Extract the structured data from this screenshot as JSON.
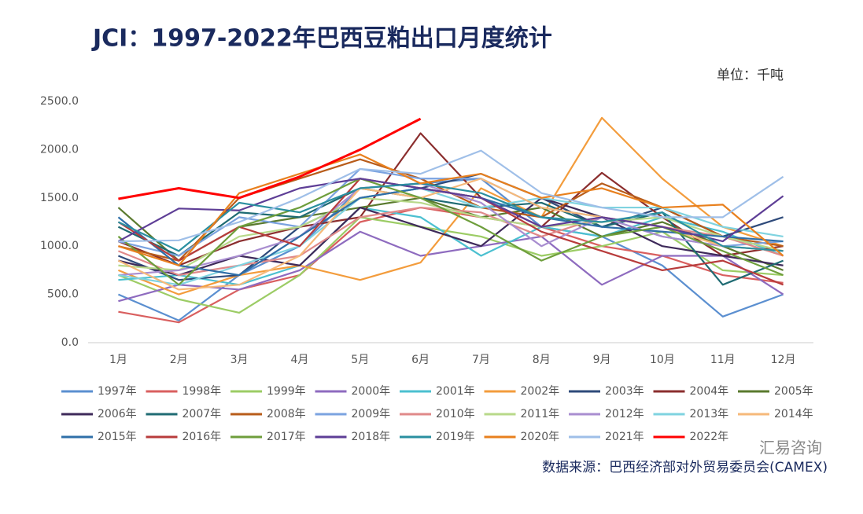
{
  "chart_data": {
    "type": "line",
    "title": "JCI：1997-2022年巴西豆粕出口月度统计",
    "unit": "单位：千吨",
    "source": "数据来源：巴西经济部对外贸易委员会(CAMEX)",
    "watermark": "汇易咨询",
    "categories": [
      "1月",
      "2月",
      "3月",
      "4月",
      "5月",
      "6月",
      "7月",
      "8月",
      "9月",
      "10月",
      "11月",
      "12月"
    ],
    "ylim": [
      0,
      2500
    ],
    "yticks": [
      {
        "value": 0,
        "label": "0.0"
      },
      {
        "value": 500,
        "label": "500.0"
      },
      {
        "value": 1000,
        "label": "1000.0"
      },
      {
        "value": 1500,
        "label": "1500.0"
      },
      {
        "value": 2000,
        "label": "2000.0"
      },
      {
        "value": 2500,
        "label": "2500.0"
      }
    ],
    "grid": false,
    "legend": "bottom",
    "series": [
      {
        "name": "1997年",
        "color": "#5b8fd0",
        "values": [
          500,
          230,
          700,
          1000,
          1600,
          1650,
          1700,
          1200,
          1100,
          800,
          270,
          500
        ]
      },
      {
        "name": "1998年",
        "color": "#d95f5f",
        "values": [
          320,
          210,
          550,
          700,
          1250,
          1400,
          1300,
          1200,
          1000,
          900,
          700,
          620
        ]
      },
      {
        "name": "1999年",
        "color": "#9ccc65",
        "values": [
          700,
          450,
          310,
          700,
          1300,
          1200,
          1100,
          900,
          1000,
          1150,
          750,
          700
        ]
      },
      {
        "name": "2000年",
        "color": "#8e6bbf",
        "values": [
          430,
          600,
          550,
          750,
          1150,
          900,
          1000,
          1100,
          600,
          900,
          900,
          500
        ]
      },
      {
        "name": "2001年",
        "color": "#4bc0d0",
        "values": [
          650,
          700,
          600,
          800,
          1400,
          1300,
          900,
          1200,
          1100,
          1300,
          1150,
          900
        ]
      },
      {
        "name": "2002年",
        "color": "#f39c3c",
        "values": [
          750,
          500,
          700,
          800,
          650,
          830,
          1600,
          1300,
          2330,
          1700,
          1200,
          1000
        ]
      },
      {
        "name": "2003年",
        "color": "#2e4a7a",
        "values": [
          900,
          650,
          700,
          1200,
          1500,
          1600,
          1750,
          1500,
          1200,
          1400,
          1100,
          1300
        ]
      },
      {
        "name": "2004年",
        "color": "#8b2e2e",
        "values": [
          1050,
          800,
          1050,
          1200,
          1300,
          2170,
          1500,
          1200,
          1760,
          1300,
          900,
          1000
        ]
      },
      {
        "name": "2005年",
        "color": "#5a7a2e",
        "values": [
          1400,
          850,
          1200,
          1300,
          1400,
          1500,
          1300,
          1400,
          1100,
          1250,
          1000,
          750
        ]
      },
      {
        "name": "2006年",
        "color": "#3e2a5a",
        "values": [
          850,
          700,
          900,
          800,
          1400,
          1200,
          1000,
          1500,
          1300,
          1000,
          900,
          800
        ]
      },
      {
        "name": "2007年",
        "color": "#1f6b73",
        "values": [
          1200,
          900,
          1350,
          1300,
          1600,
          1500,
          1400,
          1450,
          1200,
          1350,
          600,
          850
        ]
      },
      {
        "name": "2008年",
        "color": "#b85c1a",
        "values": [
          1000,
          850,
          1500,
          1700,
          1900,
          1700,
          1400,
          1300,
          1650,
          1400,
          1100,
          1000
        ]
      },
      {
        "name": "2009年",
        "color": "#7ba3e0",
        "values": [
          1050,
          900,
          1300,
          1200,
          1800,
          1700,
          1700,
          1400,
          1300,
          1100,
          1000,
          1050
        ]
      },
      {
        "name": "2010年",
        "color": "#e08a8a",
        "values": [
          950,
          700,
          800,
          900,
          1300,
          1400,
          1350,
          1100,
          1300,
          1200,
          1100,
          900
        ]
      },
      {
        "name": "2011年",
        "color": "#b8d98a",
        "values": [
          800,
          750,
          1100,
          1200,
          1500,
          1450,
          1300,
          1200,
          1250,
          1300,
          1100,
          950
        ]
      },
      {
        "name": "2012年",
        "color": "#a98ed0",
        "values": [
          700,
          750,
          900,
          1100,
          1600,
          1650,
          1450,
          1000,
          1300,
          1100,
          1000,
          950
        ]
      },
      {
        "name": "2013年",
        "color": "#7fd3e0",
        "values": [
          700,
          600,
          800,
          1000,
          1500,
          1600,
          1400,
          1500,
          1400,
          1400,
          1200,
          1100
        ]
      },
      {
        "name": "2014年",
        "color": "#f6b97a",
        "values": [
          850,
          550,
          600,
          900,
          1600,
          1500,
          1700,
          1400,
          1300,
          1200,
          1000,
          950
        ]
      },
      {
        "name": "2015年",
        "color": "#2f6fa8",
        "values": [
          1300,
          800,
          700,
          1100,
          1500,
          1600,
          1500,
          1300,
          1200,
          1150,
          1100,
          1050
        ]
      },
      {
        "name": "2016年",
        "color": "#b83c3c",
        "values": [
          1250,
          850,
          1200,
          1000,
          1700,
          1600,
          1500,
          1150,
          950,
          750,
          850,
          600
        ]
      },
      {
        "name": "2017年",
        "color": "#6e9e3c",
        "values": [
          1100,
          600,
          1200,
          1400,
          1700,
          1500,
          1200,
          850,
          1100,
          1200,
          950,
          700
        ]
      },
      {
        "name": "2018年",
        "color": "#5e3e96",
        "values": [
          1050,
          1390,
          1370,
          1600,
          1700,
          1600,
          1500,
          1200,
          1300,
          1200,
          1050,
          1520
        ]
      },
      {
        "name": "2019年",
        "color": "#2a8fa0",
        "values": [
          1250,
          950,
          1450,
          1350,
          1600,
          1650,
          1550,
          1300,
          1250,
          1350,
          1000,
          950
        ]
      },
      {
        "name": "2020年",
        "color": "#e8801e",
        "values": [
          1000,
          800,
          1550,
          1750,
          1950,
          1650,
          1750,
          1500,
          1600,
          1400,
          1430,
          900
        ]
      },
      {
        "name": "2021年",
        "color": "#9fbfe8",
        "values": [
          1050,
          1060,
          1250,
          1500,
          1800,
          1750,
          1990,
          1550,
          1400,
          1300,
          1300,
          1720
        ]
      },
      {
        "name": "2022年",
        "color": "#ff0000",
        "values": [
          1490,
          1600,
          1500,
          1720,
          2000,
          2320,
          null,
          null,
          null,
          null,
          null,
          null
        ]
      }
    ]
  }
}
